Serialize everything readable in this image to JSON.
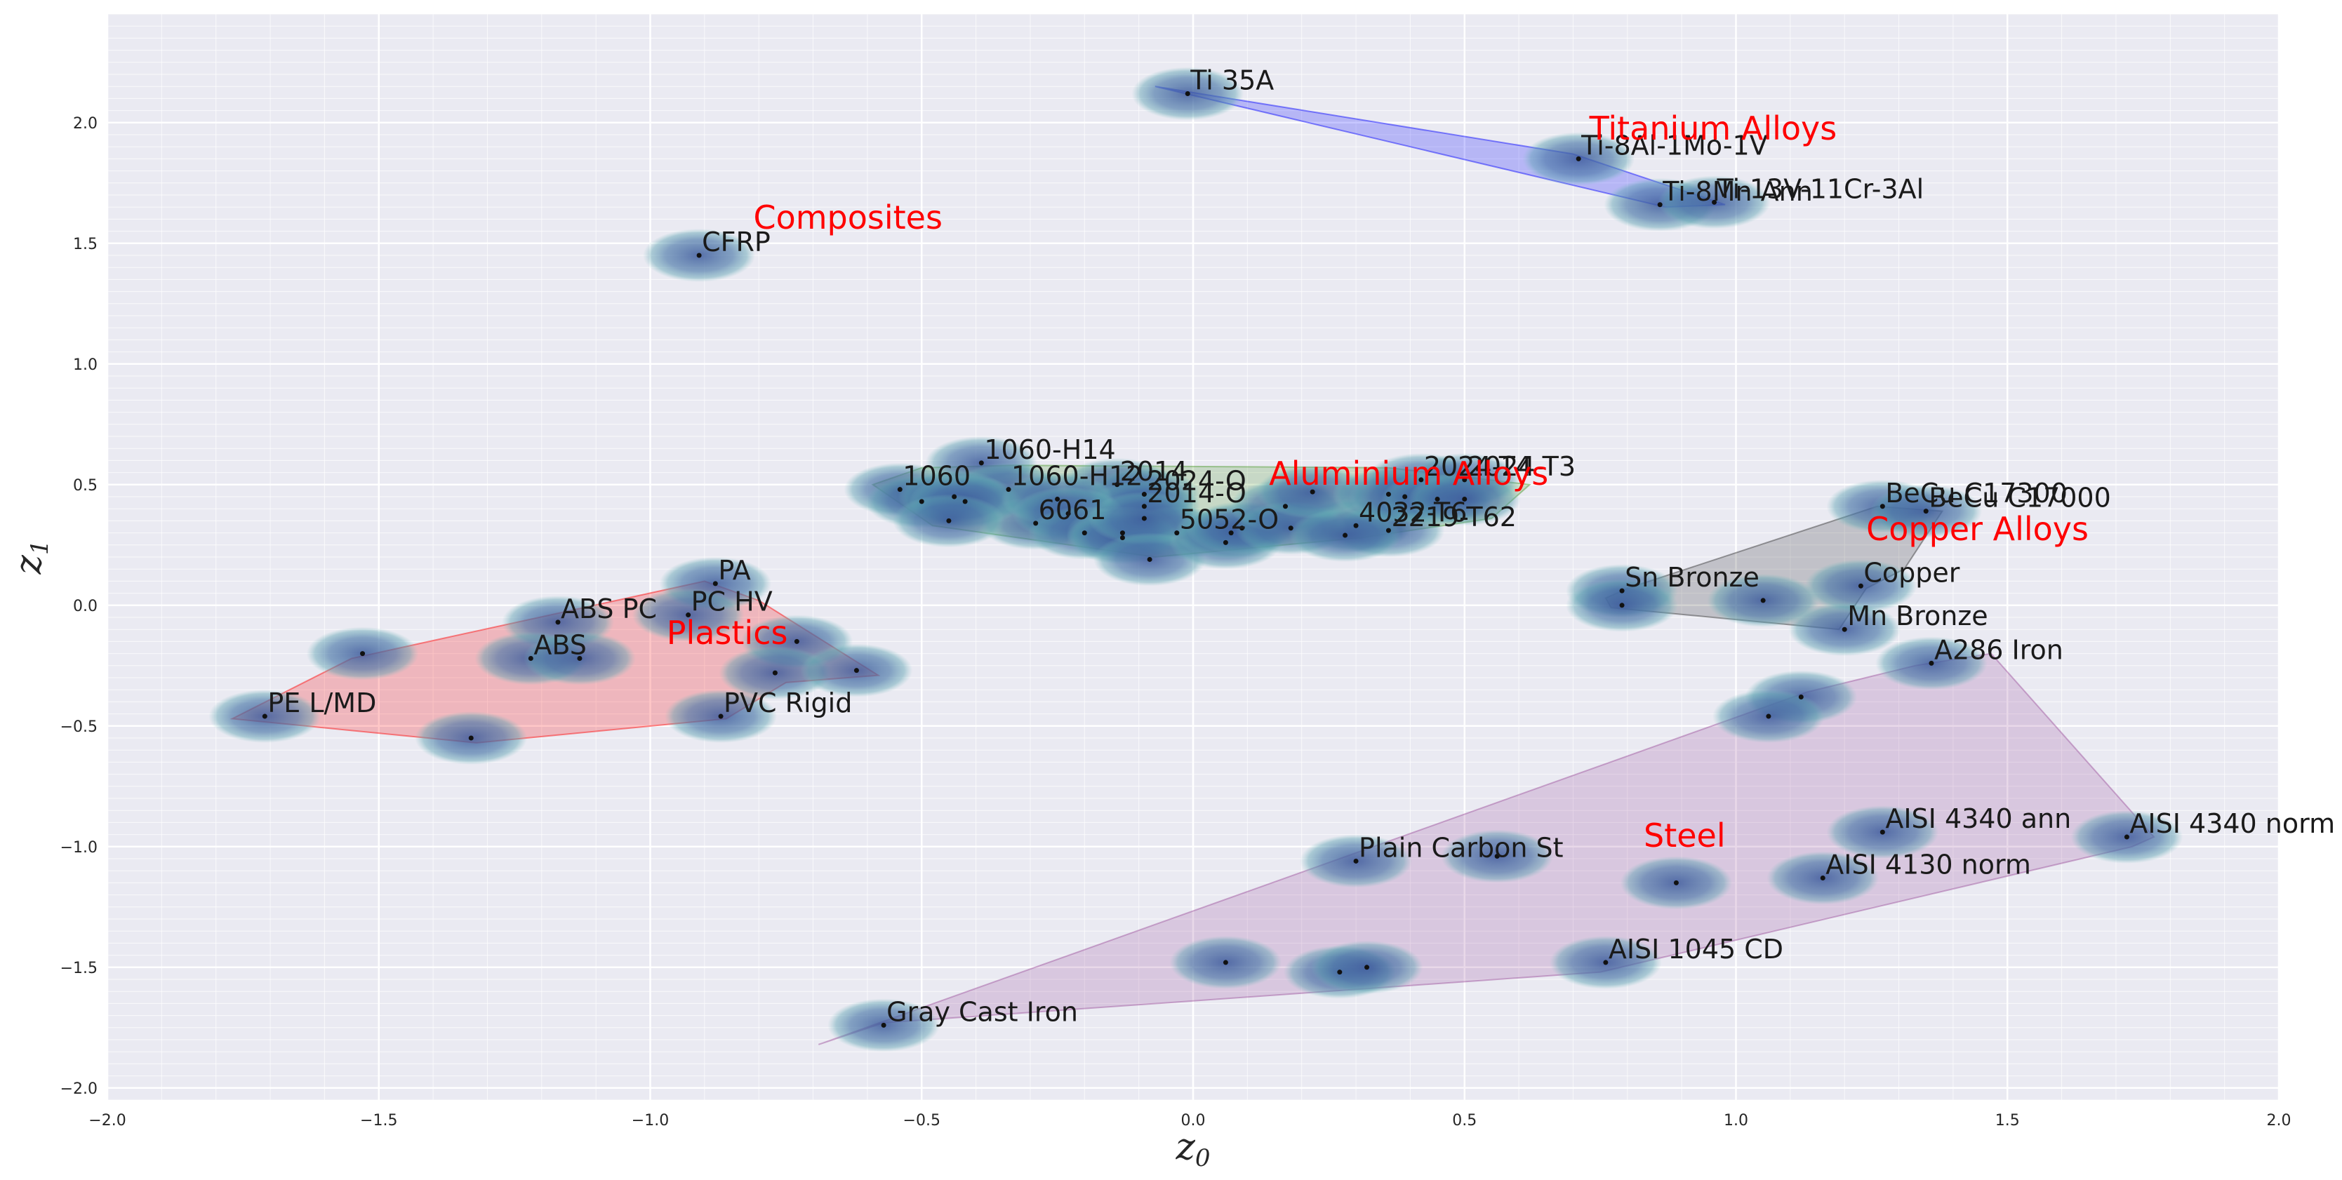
{
  "chart_data": {
    "type": "scatter",
    "xlabel": "z",
    "xlabel_sub": "0",
    "ylabel": "z",
    "ylabel_sub": "1",
    "xlim": [
      -2.0,
      2.0
    ],
    "ylim": [
      -2.05,
      2.45
    ],
    "grid": true,
    "xticks": [
      -2.0,
      -1.5,
      -1.0,
      -0.5,
      0.0,
      0.5,
      1.0,
      1.5,
      2.0
    ],
    "xtick_labels": [
      "−2.0",
      "−1.5",
      "−1.0",
      "−0.5",
      "0.0",
      "0.5",
      "1.0",
      "1.5",
      "2.0"
    ],
    "yticks": [
      -2.0,
      -1.5,
      -1.0,
      -0.5,
      0.0,
      0.5,
      1.0,
      1.5,
      2.0
    ],
    "ytick_labels": [
      "−2.0",
      "−1.5",
      "−1.0",
      "−0.5",
      "0.0",
      "0.5",
      "1.0",
      "1.5",
      "2.0"
    ],
    "groups": [
      {
        "name": "Titanium Alloys",
        "label_pos": [
          0.73,
          1.93
        ],
        "color": "#0000ff",
        "hull": [
          [
            -0.07,
            2.15
          ],
          [
            0.7,
            1.87
          ],
          [
            0.98,
            1.66
          ],
          [
            0.87,
            1.65
          ]
        ],
        "points": [
          {
            "x": -0.01,
            "y": 2.12,
            "label": "Ti 35A"
          },
          {
            "x": 0.71,
            "y": 1.85,
            "label": "Ti-8Al-1Mo-1V"
          },
          {
            "x": 0.86,
            "y": 1.66,
            "label": "Ti-8Mn Ann"
          },
          {
            "x": 0.96,
            "y": 1.67,
            "label": "Ti-13V-11Cr-3Al"
          }
        ]
      },
      {
        "name": "Composites",
        "label_pos": [
          -0.81,
          1.56
        ],
        "color": "#0000ff",
        "hull": [],
        "points": [
          {
            "x": -0.91,
            "y": 1.45,
            "label": "CFRP"
          }
        ]
      },
      {
        "name": "Aluminium Alloys",
        "label_pos": [
          0.14,
          0.5
        ],
        "color": "#4c9a2a",
        "hull": [
          [
            -0.59,
            0.5
          ],
          [
            -0.5,
            0.57
          ],
          [
            -0.33,
            0.58
          ],
          [
            0.36,
            0.57
          ],
          [
            0.62,
            0.5
          ],
          [
            0.55,
            0.36
          ],
          [
            0.31,
            0.28
          ],
          [
            -0.07,
            0.2
          ],
          [
            -0.48,
            0.33
          ]
        ],
        "points": [
          {
            "x": -0.54,
            "y": 0.48,
            "label": "1060"
          },
          {
            "x": -0.39,
            "y": 0.59,
            "label": "1060-H14"
          },
          {
            "x": -0.34,
            "y": 0.48,
            "label": "1060-H12"
          },
          {
            "x": -0.29,
            "y": 0.34,
            "label": "6061"
          },
          {
            "x": -0.14,
            "y": 0.5,
            "label": "2014"
          },
          {
            "x": -0.09,
            "y": 0.46,
            "label": "2024-O"
          },
          {
            "x": -0.09,
            "y": 0.41,
            "label": "2014-O"
          },
          {
            "x": -0.03,
            "y": 0.3,
            "label": "5052-O"
          },
          {
            "x": 0.3,
            "y": 0.33,
            "label": "4032-T6"
          },
          {
            "x": 0.36,
            "y": 0.31,
            "label": "2219-T62"
          },
          {
            "x": 0.42,
            "y": 0.52,
            "label": "2024-T4"
          },
          {
            "x": 0.5,
            "y": 0.52,
            "label": "2024-T3"
          },
          {
            "x": -0.5,
            "y": 0.43,
            "label": ""
          },
          {
            "x": -0.44,
            "y": 0.45,
            "label": ""
          },
          {
            "x": -0.42,
            "y": 0.43,
            "label": ""
          },
          {
            "x": -0.45,
            "y": 0.35,
            "label": ""
          },
          {
            "x": -0.25,
            "y": 0.44,
            "label": ""
          },
          {
            "x": -0.23,
            "y": 0.38,
            "label": ""
          },
          {
            "x": -0.2,
            "y": 0.3,
            "label": ""
          },
          {
            "x": -0.13,
            "y": 0.3,
            "label": ""
          },
          {
            "x": -0.13,
            "y": 0.28,
            "label": ""
          },
          {
            "x": -0.09,
            "y": 0.36,
            "label": ""
          },
          {
            "x": -0.08,
            "y": 0.19,
            "label": ""
          },
          {
            "x": 0.06,
            "y": 0.26,
            "label": ""
          },
          {
            "x": 0.07,
            "y": 0.3,
            "label": ""
          },
          {
            "x": 0.09,
            "y": 0.32,
            "label": ""
          },
          {
            "x": 0.17,
            "y": 0.41,
            "label": ""
          },
          {
            "x": 0.18,
            "y": 0.32,
            "label": ""
          },
          {
            "x": 0.22,
            "y": 0.47,
            "label": ""
          },
          {
            "x": 0.28,
            "y": 0.29,
            "label": ""
          },
          {
            "x": 0.36,
            "y": 0.46,
            "label": ""
          },
          {
            "x": 0.39,
            "y": 0.45,
            "label": ""
          },
          {
            "x": 0.45,
            "y": 0.44,
            "label": ""
          },
          {
            "x": 0.5,
            "y": 0.44,
            "label": ""
          }
        ]
      },
      {
        "name": "Copper Alloys",
        "label_pos": [
          1.24,
          0.27
        ],
        "color": "#333333",
        "hull": [
          [
            0.76,
            0.03
          ],
          [
            0.8,
            0.07
          ],
          [
            1.26,
            0.41
          ],
          [
            1.38,
            0.39
          ],
          [
            1.31,
            0.15
          ],
          [
            1.24,
            0.07
          ],
          [
            1.19,
            -0.1
          ],
          [
            0.77,
            -0.01
          ]
        ],
        "points": [
          {
            "x": 1.27,
            "y": 0.41,
            "label": "BeCu C17300"
          },
          {
            "x": 1.35,
            "y": 0.39,
            "label": "BeCu C17000"
          },
          {
            "x": 0.79,
            "y": 0.06,
            "label": "Sn Bronze"
          },
          {
            "x": 1.23,
            "y": 0.08,
            "label": "Copper"
          },
          {
            "x": 1.2,
            "y": -0.1,
            "label": "Mn Bronze"
          },
          {
            "x": 0.79,
            "y": 0.0,
            "label": ""
          },
          {
            "x": 1.05,
            "y": 0.02,
            "label": ""
          }
        ]
      },
      {
        "name": "Plastics",
        "label_pos": [
          -0.97,
          -0.16
        ],
        "color": "#ff0000",
        "hull": [
          [
            -1.77,
            -0.47
          ],
          [
            -1.55,
            -0.22
          ],
          [
            -0.9,
            0.1
          ],
          [
            -0.8,
            0.02
          ],
          [
            -0.58,
            -0.29
          ],
          [
            -0.75,
            -0.32
          ],
          [
            -0.86,
            -0.47
          ],
          [
            -1.32,
            -0.57
          ]
        ],
        "points": [
          {
            "x": -0.88,
            "y": 0.09,
            "label": "PA"
          },
          {
            "x": -1.17,
            "y": -0.07,
            "label": "ABS PC"
          },
          {
            "x": -0.93,
            "y": -0.04,
            "label": "PC HV"
          },
          {
            "x": -1.22,
            "y": -0.22,
            "label": "ABS"
          },
          {
            "x": -1.71,
            "y": -0.46,
            "label": "PE L/MD"
          },
          {
            "x": -0.87,
            "y": -0.46,
            "label": "PVC Rigid"
          },
          {
            "x": -1.53,
            "y": -0.2,
            "label": ""
          },
          {
            "x": -1.13,
            "y": -0.22,
            "label": ""
          },
          {
            "x": -0.73,
            "y": -0.15,
            "label": ""
          },
          {
            "x": -0.77,
            "y": -0.28,
            "label": ""
          },
          {
            "x": -0.62,
            "y": -0.27,
            "label": ""
          },
          {
            "x": -1.33,
            "y": -0.55,
            "label": ""
          }
        ]
      },
      {
        "name": "Steel",
        "label_pos": [
          0.83,
          -1.0
        ],
        "color": "#9b4f9b",
        "hull": [
          [
            -0.69,
            -1.82
          ],
          [
            -0.57,
            -1.73
          ],
          [
            0.75,
            -1.52
          ],
          [
            1.73,
            -1.0
          ],
          [
            1.77,
            -0.96
          ],
          [
            1.47,
            -0.2
          ],
          [
            1.33,
            -0.25
          ],
          [
            1.13,
            -0.36
          ]
        ],
        "points": [
          {
            "x": 1.36,
            "y": -0.24,
            "label": "A286 Iron"
          },
          {
            "x": 1.27,
            "y": -0.94,
            "label": "AISI 4340 ann"
          },
          {
            "x": 1.72,
            "y": -0.96,
            "label": "AISI 4340 norm"
          },
          {
            "x": 0.3,
            "y": -1.06,
            "label": "Plain Carbon St"
          },
          {
            "x": 1.16,
            "y": -1.13,
            "label": "AISI 4130 norm"
          },
          {
            "x": 0.76,
            "y": -1.48,
            "label": "AISI 1045 CD"
          },
          {
            "x": -0.57,
            "y": -1.74,
            "label": "Gray Cast Iron"
          },
          {
            "x": 1.12,
            "y": -0.38,
            "label": ""
          },
          {
            "x": 1.06,
            "y": -0.46,
            "label": ""
          },
          {
            "x": 0.56,
            "y": -1.04,
            "label": ""
          },
          {
            "x": 0.89,
            "y": -1.15,
            "label": ""
          },
          {
            "x": 0.06,
            "y": -1.48,
            "label": ""
          },
          {
            "x": 0.27,
            "y": -1.52,
            "label": ""
          },
          {
            "x": 0.32,
            "y": -1.5,
            "label": ""
          }
        ]
      }
    ]
  }
}
